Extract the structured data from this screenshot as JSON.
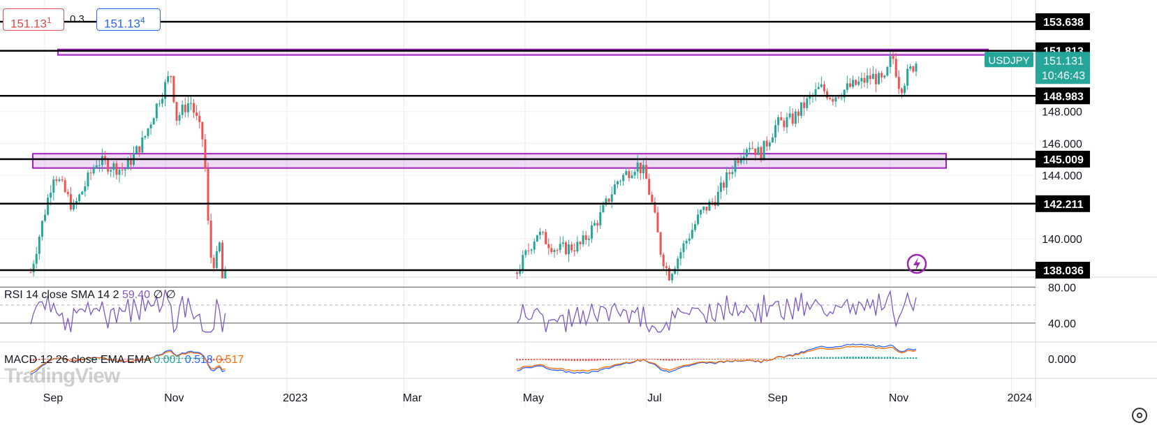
{
  "quote": {
    "bid_main": "151.13",
    "bid_pip": "1",
    "spread": "0.3",
    "ask_main": "151.13",
    "ask_pip": "4"
  },
  "symbol": {
    "name": "USDJPY",
    "price": "151.131",
    "countdown": "10:46:43"
  },
  "watermark": "TradingView",
  "colors": {
    "up": "#26a69a",
    "down": "#ef5350",
    "zone": "#a020c0",
    "zone_fill": "rgba(190,110,210,0.25)",
    "rsi": "#7e57c2",
    "macd": "#2962ff",
    "signal": "#ff6d00",
    "flash": "#9c27b0"
  },
  "icons": {
    "flash": "lightning-icon",
    "settings": "gear-icon"
  },
  "chart_data": {
    "type": "candlestick",
    "ylim": [
      137.6,
      155.0
    ],
    "x_ticks": [
      "Sep",
      "Nov",
      "2023",
      "Mar",
      "May",
      "Jul",
      "Sep",
      "Nov",
      "2024"
    ],
    "y_ticks": [
      "148.000",
      "146.000",
      "144.000",
      "140.000"
    ],
    "horizontal_levels": [
      {
        "label": "153.638",
        "value": 153.638
      },
      {
        "label": "151.813",
        "value": 151.813
      },
      {
        "label": "148.983",
        "value": 148.983
      },
      {
        "label": "145.009",
        "value": 145.009
      },
      {
        "label": "142.211",
        "value": 142.211
      },
      {
        "label": "138.036",
        "value": 138.036
      }
    ],
    "zones": [
      {
        "from": 151.55,
        "to": 151.9
      },
      {
        "from": 144.45,
        "to": 145.35
      }
    ],
    "segments": [
      {
        "from": "2022-08-25",
        "to": "2022-12-01",
        "points": [
          [
            0,
            137.9
          ],
          [
            0.12,
            144.2
          ],
          [
            0.22,
            141.9
          ],
          [
            0.34,
            144.9
          ],
          [
            0.48,
            144.3
          ],
          [
            0.58,
            146.2
          ],
          [
            0.66,
            148.8
          ],
          [
            0.72,
            150.4
          ],
          [
            0.75,
            147.6
          ],
          [
            0.82,
            148.7
          ],
          [
            0.86,
            147.2
          ],
          [
            0.89,
            146.0
          ],
          [
            0.92,
            139.0
          ],
          [
            0.95,
            138.4
          ],
          [
            0.97,
            139.7
          ],
          [
            0.985,
            137.5
          ],
          [
            1,
            137.6
          ]
        ]
      },
      {
        "from": "2023-04-27",
        "to": "2023-11-14",
        "points": [
          [
            0,
            137.9
          ],
          [
            0.05,
            140.4
          ],
          [
            0.1,
            139.3
          ],
          [
            0.16,
            139.6
          ],
          [
            0.21,
            141.5
          ],
          [
            0.25,
            143.6
          ],
          [
            0.3,
            144.7
          ],
          [
            0.32,
            144.1
          ],
          [
            0.34,
            142.0
          ],
          [
            0.36,
            139.2
          ],
          [
            0.38,
            137.7
          ],
          [
            0.42,
            139.7
          ],
          [
            0.46,
            141.6
          ],
          [
            0.5,
            142.6
          ],
          [
            0.55,
            145.0
          ],
          [
            0.58,
            146.0
          ],
          [
            0.61,
            145.3
          ],
          [
            0.65,
            147.2
          ],
          [
            0.69,
            147.5
          ],
          [
            0.72,
            148.4
          ],
          [
            0.76,
            149.5
          ],
          [
            0.79,
            148.9
          ],
          [
            0.83,
            149.5
          ],
          [
            0.86,
            149.8
          ],
          [
            0.89,
            150.2
          ],
          [
            0.92,
            149.8
          ],
          [
            0.94,
            151.6
          ],
          [
            0.96,
            149.4
          ],
          [
            0.98,
            150.4
          ],
          [
            1,
            151.1
          ]
        ]
      }
    ],
    "rsi": {
      "label": "RSI 14 close SMA 14 2",
      "value": "59.40",
      "extra1": "∅",
      "extra2": "∅",
      "levels": [
        "80.00",
        "40.00"
      ],
      "ylim": [
        22,
        88
      ]
    },
    "macd": {
      "label": "MACD 12 26 close EMA EMA",
      "histogram": "0.001",
      "macd": "0.518",
      "signal": "0.517",
      "level": "0.000"
    }
  }
}
